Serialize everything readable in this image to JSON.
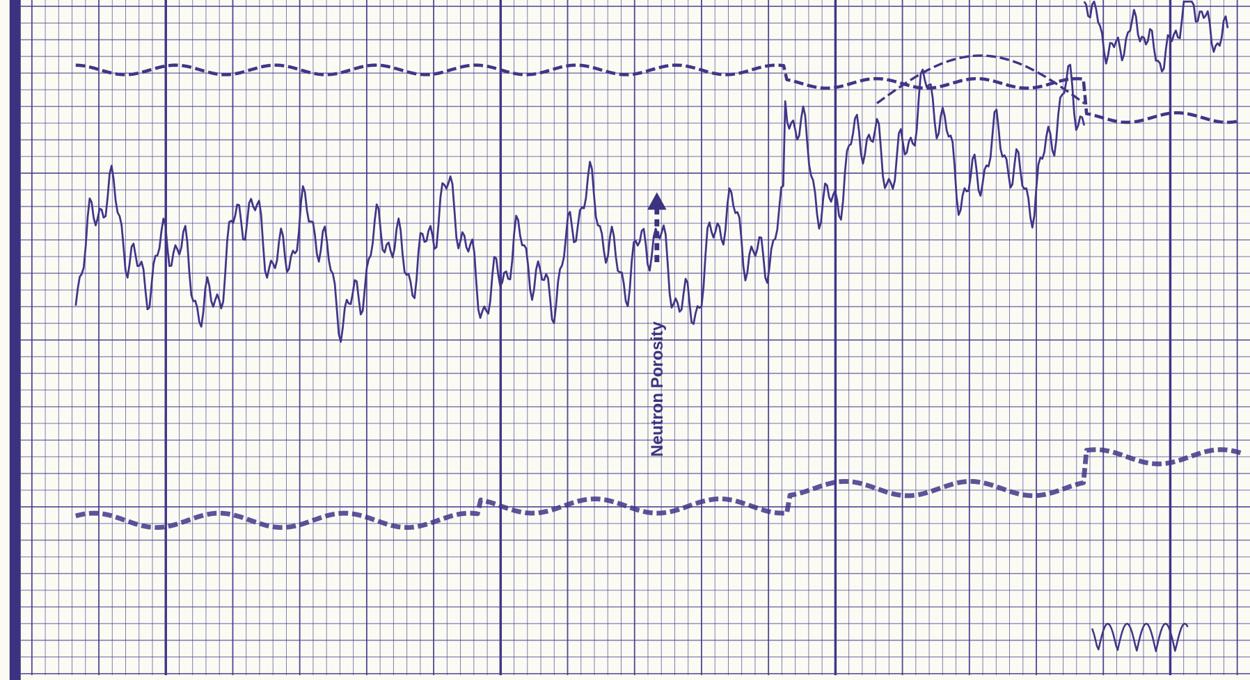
{
  "annotation": "Neutron Porosity"
}
